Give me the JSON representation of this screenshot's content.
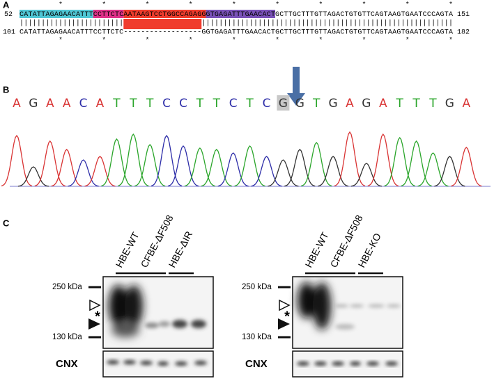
{
  "panel_a": {
    "label": "A",
    "query": {
      "start": "52",
      "end": "151",
      "segments": [
        {
          "text": "CATATTAGAGAACATTT",
          "color": "#4fc6d4"
        },
        {
          "text": "CCTTCTC",
          "color": "#e0318a"
        },
        {
          "text": "AATAAGTCCTGGCCAGAGG",
          "color": "#f03c2d"
        },
        {
          "text": "GTGAGATTTGAACACT",
          "color": "#7a52b8"
        },
        {
          "text": "GCTTGCTTTGTTAGACTGTGTTCAGTAAGTGAATCCCAGTA",
          "color": null
        }
      ]
    },
    "stars_top": "         *         *         *         *         *         *         *         *         *         *",
    "match_line": "||||||||||||||||||||||||                  ||||||||||||||||||||||||||||||||||||||||||||||||||||||||||",
    "subject": {
      "start": "101",
      "end": "182",
      "text": "CATATTAGAGAACATTTCCTTCTC------------------GGTGAGATTTGAACACTGCTTGCTTTGTTAGACTGTGTTCAGTAAGTGAATCCCAGTA"
    },
    "stars_bottom": "         *         *         *         *         *         *         *         *         *         *"
  },
  "panel_b": {
    "label": "B",
    "bases": [
      "A",
      "G",
      "A",
      "A",
      "C",
      "A",
      "T",
      "T",
      "T",
      "C",
      "C",
      "T",
      "T",
      "C",
      "T",
      "C",
      "G",
      "G",
      "T",
      "G",
      "A",
      "G",
      "A",
      "T",
      "T",
      "T",
      "G",
      "A"
    ],
    "base_colors": {
      "A": "#d93434",
      "C": "#2d2da8",
      "G": "#333333",
      "T": "#2aa52a"
    },
    "highlight": 16,
    "peak_heights": [
      73,
      28,
      65,
      53,
      38,
      43,
      68,
      75,
      60,
      73,
      58,
      55,
      53,
      48,
      58,
      43,
      38,
      53,
      63,
      43,
      78,
      33,
      75,
      70,
      65,
      48,
      43,
      56
    ]
  },
  "panel_c": {
    "label": "C",
    "blots": [
      {
        "lanes": [
          "HBE-WT",
          "CFBE-ΔF508",
          "HBE-ΔIR"
        ],
        "markers": [
          "250 kDa",
          "130 kDa"
        ],
        "band_mark": "*",
        "loading_label": "CNX"
      },
      {
        "lanes": [
          "HBE-WT",
          "CFBE-ΔF508",
          "HBE-KO"
        ],
        "markers": [
          "250 kDa",
          "130 kDa"
        ],
        "band_mark": "*",
        "loading_label": "CNX"
      }
    ]
  }
}
